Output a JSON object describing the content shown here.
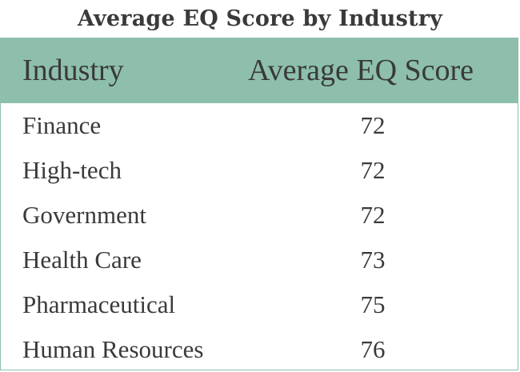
{
  "chart_data": {
    "type": "table",
    "title": "Average EQ Score by Industry",
    "columns": [
      "Industry",
      "Average EQ Score"
    ],
    "rows": [
      {
        "industry": "Finance",
        "score": 72
      },
      {
        "industry": "High-tech",
        "score": 72
      },
      {
        "industry": "Government",
        "score": 72
      },
      {
        "industry": "Health Care",
        "score": 73
      },
      {
        "industry": "Pharmaceutical",
        "score": 75
      },
      {
        "industry": "Human Resources",
        "score": 76
      }
    ]
  },
  "colors": {
    "header_background": "#8dbfac",
    "text": "#3a3a3a",
    "background": "#ffffff"
  }
}
